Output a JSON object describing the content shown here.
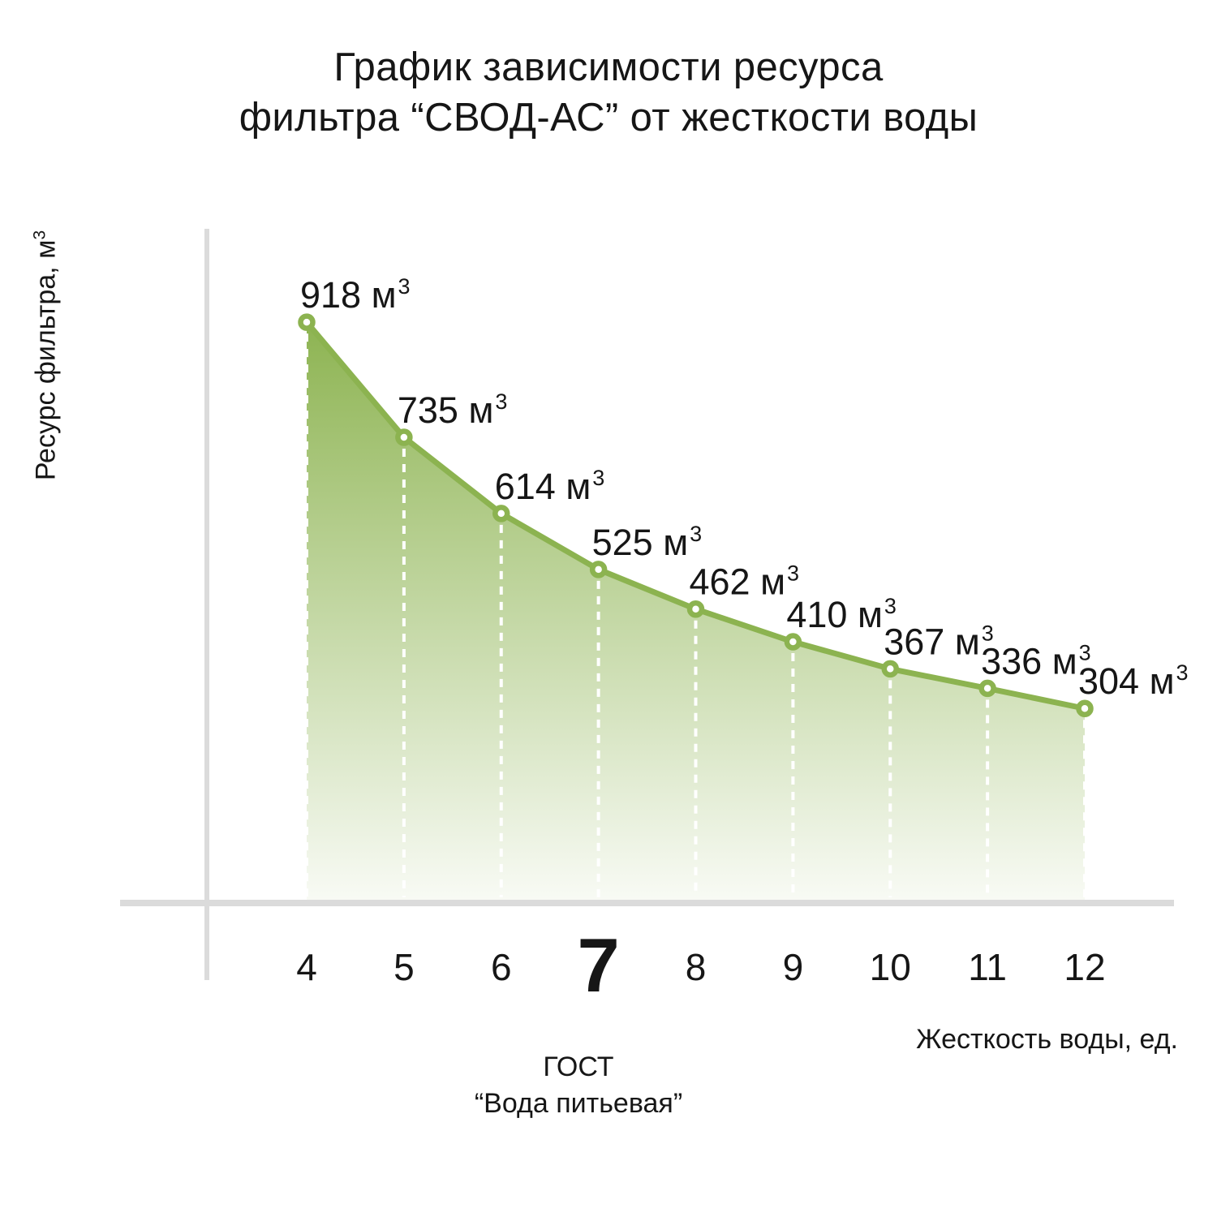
{
  "title": {
    "line1": "График зависимости ресурса",
    "line2": "фильтра “СВОД-АС” от жесткости воды"
  },
  "y_axis": {
    "label_main": "Ресурс фильтра, м",
    "label_sup": "3"
  },
  "x_axis": {
    "label": "Жесткость воды, ед.",
    "annotation_line1": "ГОСТ",
    "annotation_line2": "“Вода питьевая”"
  },
  "chart_data": {
    "type": "area",
    "title": "График зависимости ресурса фильтра “СВОД-АС” от жесткости воды",
    "x": [
      4,
      5,
      6,
      7,
      8,
      9,
      10,
      11,
      12
    ],
    "values": [
      918,
      735,
      614,
      525,
      462,
      410,
      367,
      336,
      304
    ],
    "point_labels": [
      "918 м³",
      "735 м³",
      "614 м³",
      "525 м³",
      "462 м³",
      "410 м³",
      "367 м³",
      "336 м³",
      "304 м³"
    ],
    "unit_main": "м",
    "unit_sup": "3",
    "xlabel": "Жесткость воды, ед.",
    "ylabel": "Ресурс фильтра, м³",
    "xlim": [
      4,
      12
    ],
    "ylim": [
      0,
      918
    ],
    "highlight_x": 7,
    "grid": false,
    "legend": false,
    "colors": {
      "line": "#8CB350",
      "area_top": "#8CB350",
      "marker_fill": "#FFFFFF",
      "dashed_line": "#FFFFFF",
      "axis": "#DBDBDB",
      "text": "#161616"
    }
  }
}
